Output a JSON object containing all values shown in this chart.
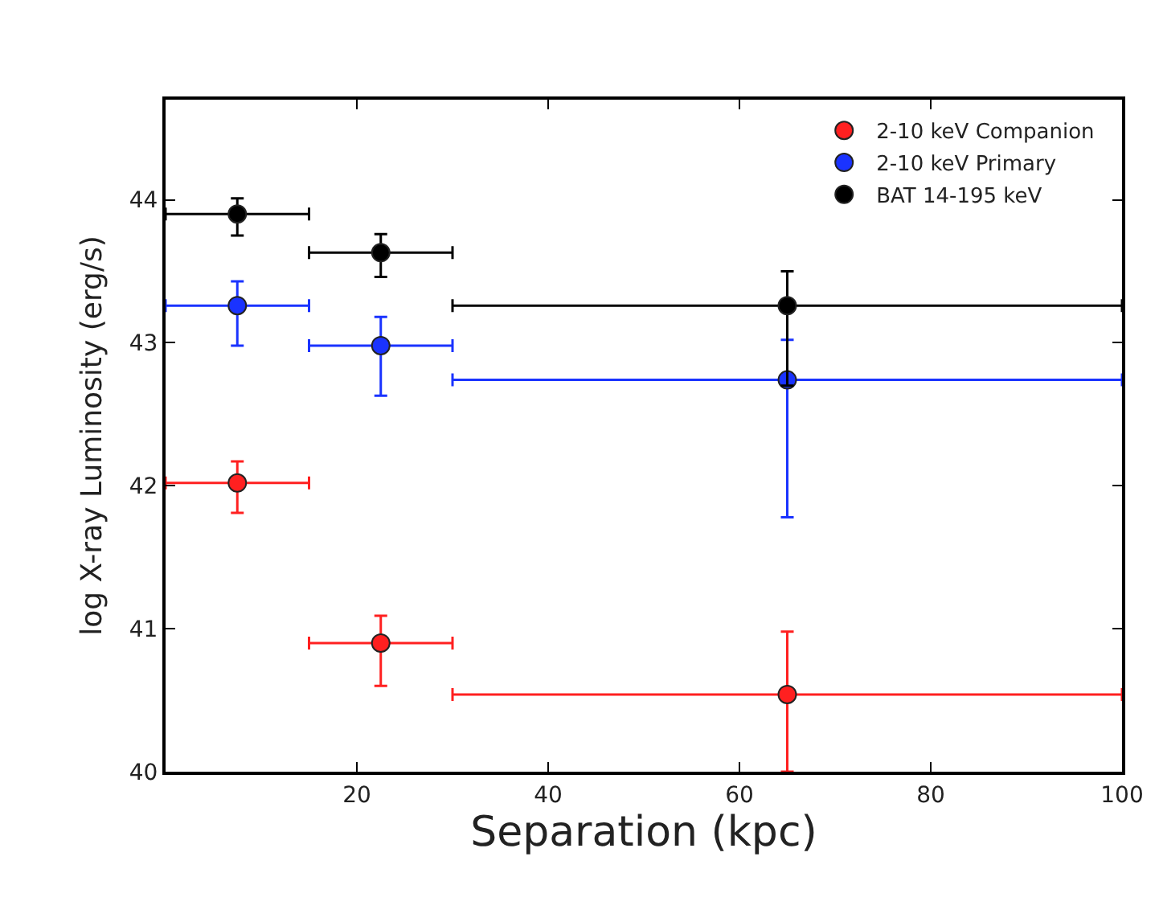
{
  "chart_data": {
    "type": "scatter",
    "xlabel": "Separation (kpc)",
    "ylabel": "log X-ray Luminosity (erg/s)",
    "xlim": [
      0,
      100
    ],
    "xticks": [
      {
        "value": 0,
        "label": null
      },
      20,
      40,
      60,
      80,
      100
    ],
    "ylim": [
      40,
      44.7
    ],
    "yticks": [
      40,
      41,
      42,
      43,
      44
    ],
    "grid": false,
    "legend": "top right",
    "marker": "circle",
    "x": [
      7.5,
      22.5,
      65
    ],
    "series": [
      {
        "name": "2-10 keV Companion",
        "color": "#ff2020",
        "values": [
          42.02,
          40.9,
          40.54
        ],
        "errors": [
          [
            41.81,
            42.17
          ],
          [
            40.6,
            41.09
          ],
          [
            40,
            40.98
          ]
        ],
        "xerrors": [
          [
            0,
            15
          ],
          [
            15,
            30
          ],
          [
            30,
            100
          ]
        ]
      },
      {
        "name": "2-10 keV Primary",
        "color": "#1a33ff",
        "values": [
          43.26,
          42.98,
          42.74
        ],
        "errors": [
          [
            42.98,
            43.43
          ],
          [
            42.63,
            43.18
          ],
          [
            41.78,
            43.02
          ]
        ],
        "xerrors": [
          [
            0,
            15
          ],
          [
            15,
            30
          ],
          [
            30,
            100
          ]
        ]
      },
      {
        "name": "BAT 14-195 keV",
        "color": "#000000",
        "values": [
          43.9,
          43.63,
          43.26
        ],
        "errors": [
          [
            43.75,
            44.01
          ],
          [
            43.46,
            43.76
          ],
          [
            42.7,
            43.5
          ]
        ],
        "xerrors": [
          [
            0,
            15
          ],
          [
            15,
            30
          ],
          [
            30,
            100
          ]
        ]
      }
    ]
  }
}
